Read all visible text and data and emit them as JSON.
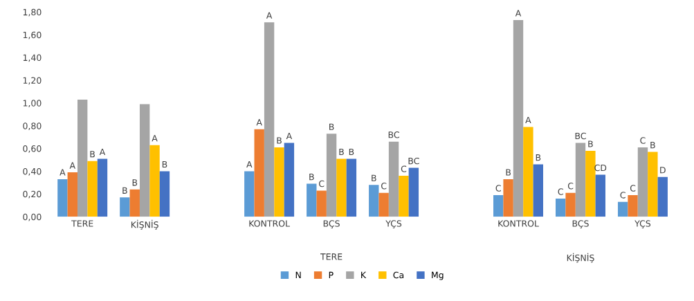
{
  "chart_data": {
    "type": "bar",
    "categories": [
      "TERE",
      "KİŞNİŞ",
      null,
      "KONTROL",
      "BÇS",
      "YÇS",
      null,
      "KONTROL",
      "BÇS",
      "YÇS"
    ],
    "series": [
      {
        "name": "N",
        "color": "#5b9bd5",
        "values": [
          0.33,
          0.17,
          null,
          0.4,
          0.29,
          0.28,
          null,
          0.19,
          0.16,
          0.13
        ],
        "value_labels": [
          "A",
          "B",
          null,
          "A",
          "B",
          "B",
          null,
          "C",
          "C",
          "C"
        ]
      },
      {
        "name": "P",
        "color": "#ed7d31",
        "values": [
          0.39,
          0.24,
          null,
          0.77,
          0.23,
          0.21,
          null,
          0.33,
          0.21,
          0.19
        ],
        "value_labels": [
          "A",
          "B",
          null,
          "A",
          "C",
          "C",
          null,
          "B",
          "C",
          "C"
        ]
      },
      {
        "name": "K",
        "color": "#a5a5a5",
        "values": [
          1.03,
          0.99,
          null,
          1.71,
          0.73,
          0.66,
          null,
          1.73,
          0.65,
          0.61
        ],
        "value_labels": [
          null,
          null,
          null,
          "A",
          "B",
          "BC",
          null,
          "A",
          "BC",
          "C"
        ]
      },
      {
        "name": "Ca",
        "color": "#ffc000",
        "values": [
          0.49,
          0.63,
          null,
          0.61,
          0.51,
          0.36,
          null,
          0.79,
          0.58,
          0.57
        ],
        "value_labels": [
          "B",
          "A",
          null,
          "B",
          "B",
          "C",
          null,
          "A",
          "B",
          "B"
        ]
      },
      {
        "name": "Mg",
        "color": "#4472c4",
        "values": [
          0.51,
          0.4,
          null,
          0.65,
          0.51,
          0.43,
          null,
          0.46,
          0.37,
          0.35
        ],
        "value_labels": [
          "A",
          "B",
          null,
          "A",
          "B",
          "BC",
          null,
          "B",
          "CD",
          "D"
        ]
      }
    ],
    "annotations": [
      "TERE",
      "KİŞNİŞ"
    ],
    "ylim": [
      0,
      1.8
    ],
    "yticks": [
      {
        "value": 0,
        "label": "0,00"
      },
      {
        "value": 0.2,
        "label": "0,20"
      },
      {
        "value": 0.4,
        "label": "0,40"
      },
      {
        "value": 0.6,
        "label": "0,60"
      },
      {
        "value": 0.8,
        "label": "0,80"
      },
      {
        "value": 1.0,
        "label": "1,00"
      },
      {
        "value": 1.2,
        "label": "1,20"
      },
      {
        "value": 1.4,
        "label": "1,40"
      },
      {
        "value": 1.6,
        "label": "1,60"
      },
      {
        "value": 1.8,
        "label": "1,80"
      }
    ],
    "grid": false,
    "legend": "bottom"
  }
}
